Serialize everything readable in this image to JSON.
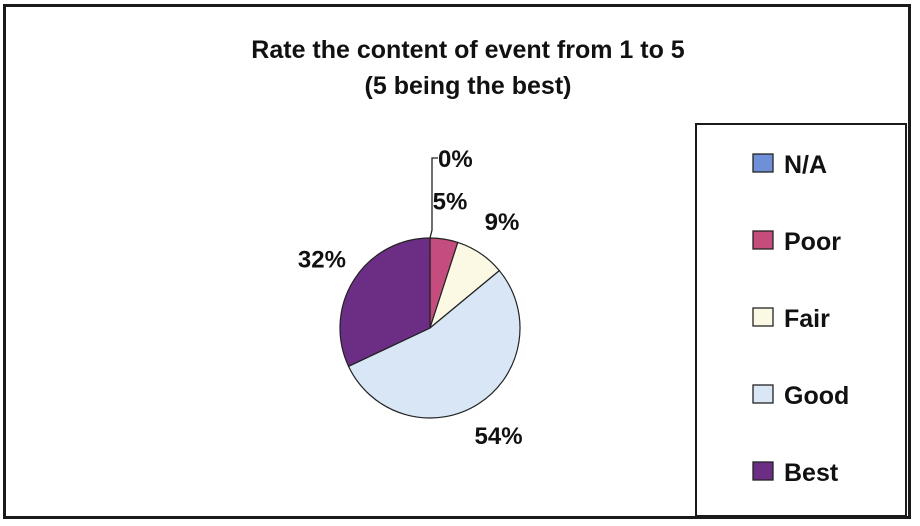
{
  "chart_data": {
    "type": "pie",
    "title": "Rate the content of event from 1 to 5",
    "subtitle": "(5 being the best)",
    "categories": [
      "N/A",
      "Poor",
      "Fair",
      "Good",
      "Best"
    ],
    "values": [
      0,
      5,
      9,
      54,
      32
    ],
    "labels": [
      "0%",
      "5%",
      "9%",
      "54%",
      "32%"
    ],
    "colors": [
      "#6f8fd8",
      "#c44d7d",
      "#fbf8e4",
      "#d8e6f6",
      "#6b2e84"
    ],
    "legend_position": "right"
  }
}
